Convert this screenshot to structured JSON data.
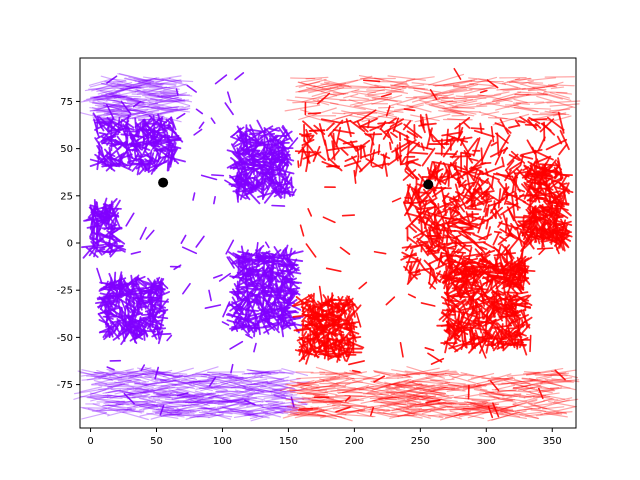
{
  "chart_data": {
    "type": "scatter",
    "title": "",
    "xlabel": "",
    "ylabel": "",
    "xlim": [
      -8,
      368
    ],
    "ylim": [
      -98,
      98
    ],
    "xticks": [
      0,
      50,
      100,
      150,
      200,
      250,
      300,
      350
    ],
    "yticks": [
      -75,
      -50,
      -25,
      0,
      25,
      50,
      75
    ],
    "grid": false,
    "legend": false,
    "series": [
      {
        "color": "#8000ff",
        "marker": "short line segments (flow streaks)",
        "regions": [
          {
            "x": [
              5,
              65
            ],
            "y": [
              40,
              88
            ]
          },
          {
            "x": [
              0,
              20
            ],
            "y": [
              -5,
              20
            ]
          },
          {
            "x": [
              10,
              55
            ],
            "y": [
              -50,
              -20
            ]
          },
          {
            "x": [
              110,
              150
            ],
            "y": [
              25,
              60
            ]
          },
          {
            "x": [
              110,
              155
            ],
            "y": [
              -45,
              -5
            ]
          },
          {
            "x": [
              0,
              155
            ],
            "y": [
              -92,
              -68
            ]
          }
        ],
        "highlight": {
          "x": 55,
          "y": 32,
          "color": "#000000"
        }
      },
      {
        "color": "#ff0000",
        "marker": "short line segments (flow streaks)",
        "regions": [
          {
            "x": [
              160,
              360
            ],
            "y": [
              40,
              88
            ]
          },
          {
            "x": [
              240,
              330
            ],
            "y": [
              -20,
              40
            ]
          },
          {
            "x": [
              160,
              200
            ],
            "y": [
              -60,
              -30
            ]
          },
          {
            "x": [
              270,
              330
            ],
            "y": [
              -55,
              -10
            ]
          },
          {
            "x": [
              155,
              360
            ],
            "y": [
              -92,
              -68
            ]
          },
          {
            "x": [
              330,
              360
            ],
            "y": [
              0,
              40
            ]
          }
        ],
        "highlight": {
          "x": 256,
          "y": 31,
          "color": "#000000"
        }
      }
    ]
  }
}
